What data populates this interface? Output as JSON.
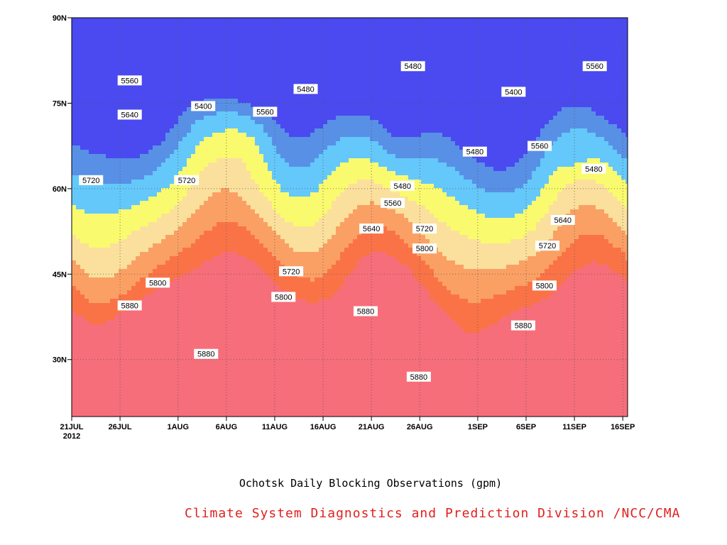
{
  "chart_data": {
    "type": "heatmap",
    "title": "",
    "caption": "Ochotsk Daily Blocking Observations (gpm)",
    "credit": "Climate System Diagnostics and Prediction Division /NCC/CMA",
    "credit_color": "#e0201e",
    "xlabel": "",
    "ylabel": "",
    "x_tick_labels": [
      "21JUL",
      "26JUL",
      "1AUG",
      "6AUG",
      "11AUG",
      "16AUG",
      "21AUG",
      "26AUG",
      "1SEP",
      "6SEP",
      "11SEP",
      "16SEP"
    ],
    "x_tick_sublabel": "2012",
    "x_tick_days": [
      0,
      5,
      11,
      16,
      21,
      26,
      31,
      36,
      42,
      47,
      52,
      57
    ],
    "xlim": [
      0,
      57.5
    ],
    "y_tick_labels": [
      "30N",
      "45N",
      "60N",
      "75N",
      "90N"
    ],
    "y_tick_values": [
      30,
      45,
      60,
      75,
      90
    ],
    "ylim": [
      20,
      90
    ],
    "grid": true,
    "contour_levels": [
      5400,
      5480,
      5560,
      5640,
      5720,
      5800,
      5880
    ],
    "level_colors": {
      "below_5400": "#4a4af0",
      "5400_5480": "#5890e6",
      "5480_5560": "#64c8fa",
      "5560_5640": "#fafa6e",
      "5640_5720": "#fae09c",
      "5720_5800": "#fba064",
      "5800_5880": "#fa7346",
      "5880_5960": "#f66e7a",
      "above_5960": "#f2324a"
    },
    "contour_labels": [
      {
        "text": "5560",
        "day": 6.0,
        "lat": 79.0
      },
      {
        "text": "5640",
        "day": 6.0,
        "lat": 73.0
      },
      {
        "text": "5720",
        "day": 2.0,
        "lat": 61.5
      },
      {
        "text": "5720",
        "day": 11.9,
        "lat": 61.5
      },
      {
        "text": "5400",
        "day": 13.6,
        "lat": 74.5
      },
      {
        "text": "5560",
        "day": 20.0,
        "lat": 73.5
      },
      {
        "text": "5480",
        "day": 24.2,
        "lat": 77.5
      },
      {
        "text": "5800",
        "day": 8.9,
        "lat": 43.5
      },
      {
        "text": "5880",
        "day": 6.0,
        "lat": 39.5
      },
      {
        "text": "5880",
        "day": 13.9,
        "lat": 31.0
      },
      {
        "text": "5720",
        "day": 22.7,
        "lat": 45.5
      },
      {
        "text": "5800",
        "day": 21.9,
        "lat": 41.0
      },
      {
        "text": "5480",
        "day": 35.3,
        "lat": 81.5
      },
      {
        "text": "5480",
        "day": 34.2,
        "lat": 60.5
      },
      {
        "text": "5560",
        "day": 33.2,
        "lat": 57.5
      },
      {
        "text": "5640",
        "day": 31.0,
        "lat": 53.0
      },
      {
        "text": "5720",
        "day": 36.5,
        "lat": 53.0
      },
      {
        "text": "5800",
        "day": 36.5,
        "lat": 49.5
      },
      {
        "text": "5880",
        "day": 30.4,
        "lat": 38.5
      },
      {
        "text": "5880",
        "day": 35.9,
        "lat": 27.0
      },
      {
        "text": "5480",
        "day": 41.7,
        "lat": 66.5
      },
      {
        "text": "5400",
        "day": 45.7,
        "lat": 77.0
      },
      {
        "text": "5560",
        "day": 48.4,
        "lat": 67.5
      },
      {
        "text": "5560",
        "day": 54.1,
        "lat": 81.5
      },
      {
        "text": "5480",
        "day": 54.0,
        "lat": 63.5
      },
      {
        "text": "5640",
        "day": 50.8,
        "lat": 54.5
      },
      {
        "text": "5720",
        "day": 49.2,
        "lat": 50.0
      },
      {
        "text": "5800",
        "day": 48.9,
        "lat": 43.0
      },
      {
        "text": "5880",
        "day": 46.7,
        "lat": 36.0
      }
    ]
  }
}
